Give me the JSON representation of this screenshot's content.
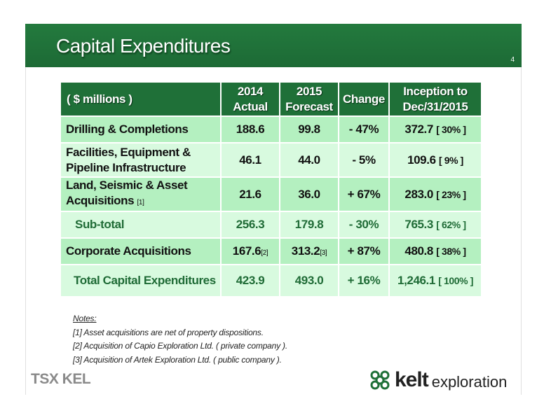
{
  "slide": {
    "title": "Capital Expenditures",
    "page_number": "4"
  },
  "table": {
    "headers": [
      {
        "line1": "( $ millions )",
        "line2": ""
      },
      {
        "line1": "2014",
        "line2": "Actual"
      },
      {
        "line1": "2015",
        "line2": "Forecast"
      },
      {
        "line1": "Change",
        "line2": ""
      },
      {
        "line1": "Inception to",
        "line2": "Dec/31/2015"
      }
    ],
    "rows": [
      {
        "label1": "Drilling & Completions",
        "label2": "",
        "label_ref": "",
        "v2014": "188.6",
        "v2014_ref": "",
        "v2015": "99.8",
        "v2015_ref": "",
        "change": "- 47%",
        "inception": "372.7",
        "inception_pct": "[ 30% ]"
      },
      {
        "label1": "Facilities, Equipment &",
        "label2": "Pipeline Infrastructure",
        "label_ref": "",
        "v2014": "46.1",
        "v2014_ref": "",
        "v2015": "44.0",
        "v2015_ref": "",
        "change": "- 5%",
        "inception": "109.6",
        "inception_pct": "[ 9% ]"
      },
      {
        "label1": "Land, Seismic & Asset",
        "label2": "Acquisitions",
        "label_ref": "[1]",
        "v2014": "21.6",
        "v2014_ref": "",
        "v2015": "36.0",
        "v2015_ref": "",
        "change": "+ 67%",
        "inception": "283.0",
        "inception_pct": "[ 23% ]"
      },
      {
        "label1": "Sub-total",
        "label2": "",
        "label_ref": "",
        "v2014": "256.3",
        "v2014_ref": "",
        "v2015": "179.8",
        "v2015_ref": "",
        "change": "- 30%",
        "inception": "765.3",
        "inception_pct": "[ 62% ]"
      },
      {
        "label1": "Corporate Acquisitions",
        "label2": "",
        "label_ref": "",
        "v2014": "167.6",
        "v2014_ref": "[2]",
        "v2015": "313.2",
        "v2015_ref": "[3]",
        "change": "+ 87%",
        "inception": "480.8",
        "inception_pct": "[ 38% ]"
      },
      {
        "label1": "Total Capital Expenditures",
        "label2": "",
        "label_ref": "",
        "v2014": "423.9",
        "v2014_ref": "",
        "v2015": "493.0",
        "v2015_ref": "",
        "change": "+ 16%",
        "inception": "1,246.1",
        "inception_pct": "[ 100% ]"
      }
    ]
  },
  "notes": {
    "title": "Notes:",
    "items": [
      "[1] Asset acquisitions are net of property dispositions.",
      "[2] Acquisition of Capio Exploration Ltd. ( private company ).",
      "[3] Acquisition of Artek Exploration Ltd. ( public company )."
    ]
  },
  "footer": {
    "tsx_logo": "TSX KEL",
    "brand_name": "kelt",
    "brand_suffix": "exploration",
    "brand_color": "#1f7038"
  }
}
